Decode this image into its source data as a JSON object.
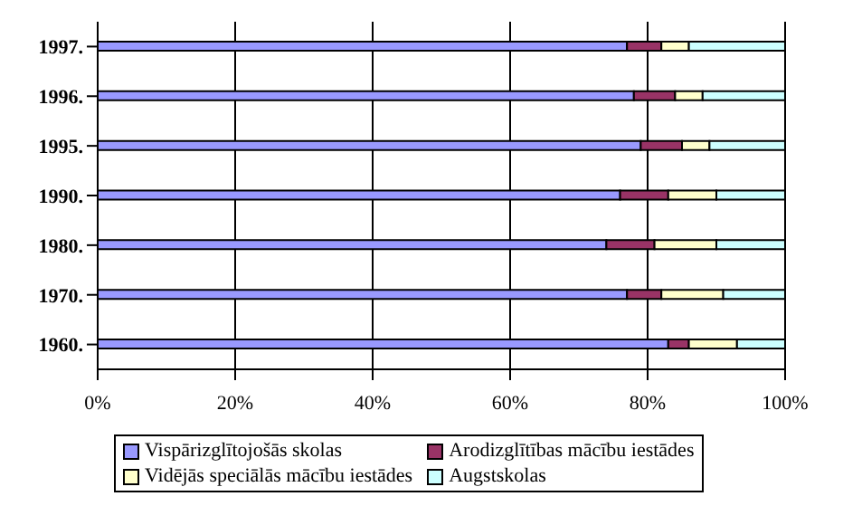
{
  "chart_data": {
    "type": "bar",
    "orientation": "horizontal",
    "stacked": true,
    "categories": [
      "1997.",
      "1996.",
      "1995.",
      "1990.",
      "1980.",
      "1970.",
      "1960."
    ],
    "series": [
      {
        "name": "Vispārizglītojošās skolas",
        "color": "#9999ff",
        "values": [
          77,
          78,
          79,
          76,
          74,
          77,
          83
        ]
      },
      {
        "name": "Arodizglītības mācību iestādes",
        "color": "#993366",
        "values": [
          5,
          6,
          6,
          7,
          7,
          5,
          3
        ]
      },
      {
        "name": "Vidējās speciālās mācību iestādes",
        "color": "#ffffcc",
        "values": [
          4,
          4,
          4,
          7,
          9,
          9,
          7
        ]
      },
      {
        "name": "Augstskolas",
        "color": "#ccffff",
        "values": [
          14,
          12,
          11,
          10,
          10,
          9,
          7
        ]
      }
    ],
    "xlim": [
      0,
      100
    ],
    "xticks": [
      {
        "value": 0,
        "label": "0%"
      },
      {
        "value": 20,
        "label": "20%"
      },
      {
        "value": 40,
        "label": "40%"
      },
      {
        "value": 60,
        "label": "60%"
      },
      {
        "value": 80,
        "label": "80%"
      },
      {
        "value": 100,
        "label": "100%"
      }
    ],
    "grid": "x",
    "legend": "bottom"
  }
}
